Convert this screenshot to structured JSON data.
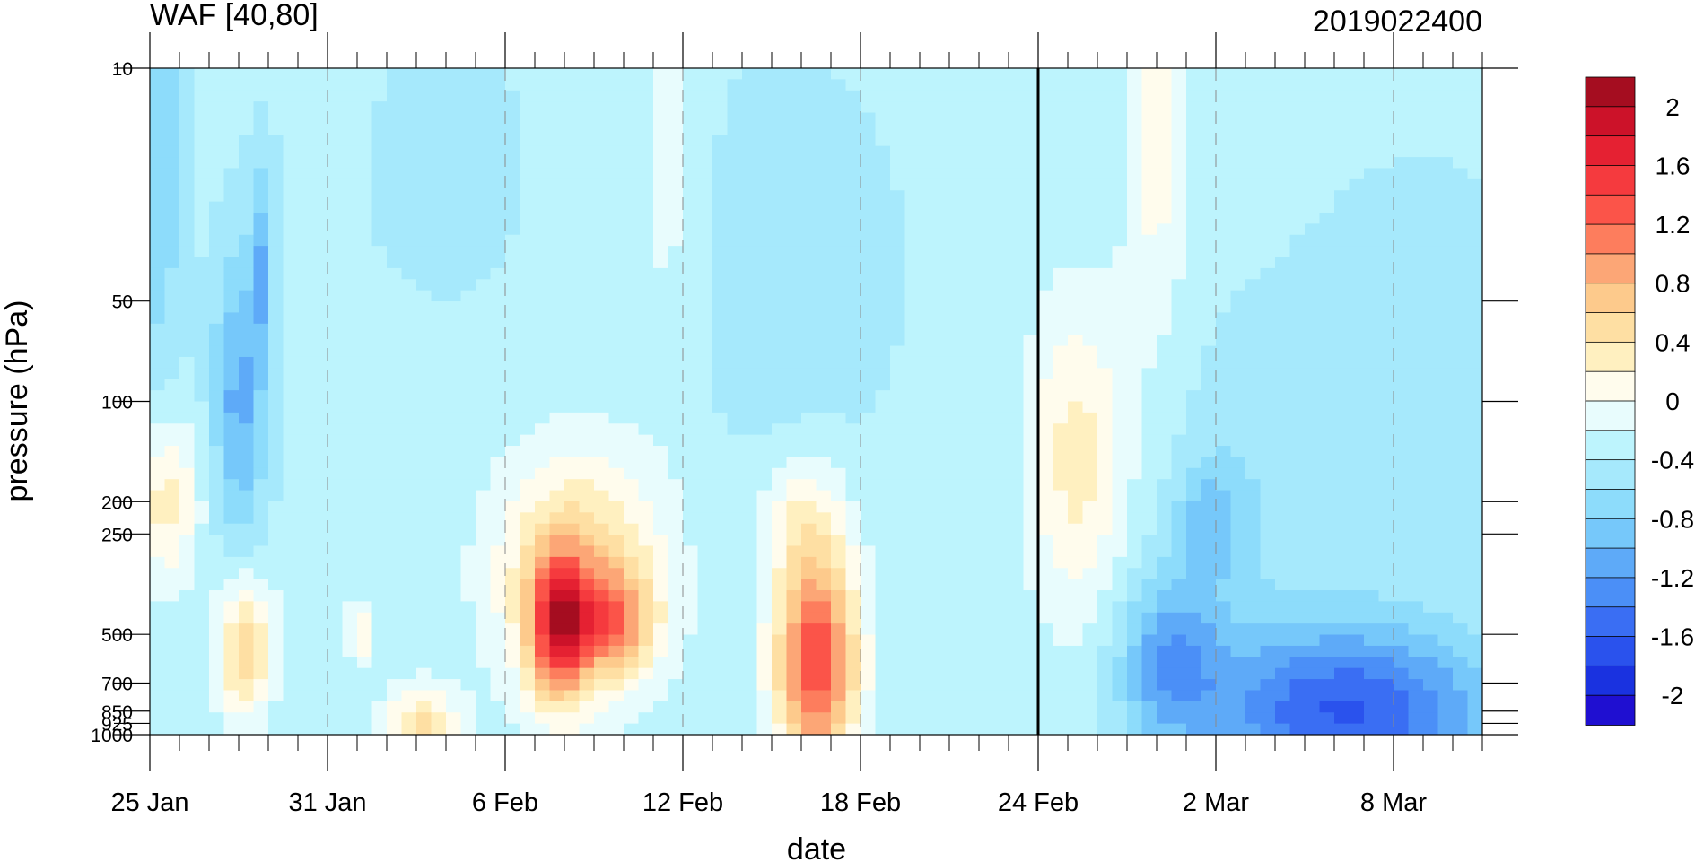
{
  "chart_data": {
    "type": "heatmap",
    "title": "WAF [40,80]",
    "run_label": "2019022400",
    "xlabel": "date",
    "ylabel": "pressure (hPa)",
    "x_tick_labels": [
      "25 Jan",
      "31 Jan",
      "6 Feb",
      "12 Feb",
      "18 Feb",
      "24 Feb",
      "2 Mar",
      "8 Mar"
    ],
    "x_tick_days": [
      0,
      6,
      12,
      18,
      24,
      30,
      36,
      42
    ],
    "x_range_days": [
      0,
      45
    ],
    "y_tick_labels": [
      "10",
      "50",
      "100",
      "200",
      "250",
      "500",
      "700",
      "850",
      "925",
      "1000"
    ],
    "y_ticks": [
      10,
      50,
      100,
      200,
      250,
      500,
      700,
      850,
      925,
      1000
    ],
    "y_range": [
      10,
      1000
    ],
    "y_scale": "log",
    "y_inverted": true,
    "highlight_day": 30,
    "colorbar": {
      "tick_labels": [
        "2",
        "1.6",
        "1.2",
        "0.8",
        "0.4",
        "0",
        "-0.4",
        "-0.8",
        "-1.2",
        "-1.6",
        "-2"
      ],
      "tick_values": [
        2,
        1.6,
        1.2,
        0.8,
        0.4,
        0,
        -0.4,
        -0.8,
        -1.2,
        -1.6,
        -2
      ],
      "levels": [
        -2.2,
        -2,
        -1.8,
        -1.6,
        -1.4,
        -1.2,
        -1,
        -0.8,
        -0.6,
        -0.4,
        -0.2,
        0,
        0.2,
        0.4,
        0.6,
        0.8,
        1,
        1.2,
        1.4,
        1.6,
        1.8,
        2,
        2.2
      ],
      "colors": [
        "#1f0fd1",
        "#1a32e0",
        "#2a52ed",
        "#3a6ef3",
        "#4b8ff7",
        "#5eaaf8",
        "#76c8fa",
        "#8ddcfb",
        "#a6e9fc",
        "#bdf4fd",
        "#e8fcfd",
        "#fffced",
        "#fff0c0",
        "#fedfa3",
        "#fdca8c",
        "#fca676",
        "#fd7d5d",
        "#fb5449",
        "#f53a3e",
        "#e52132",
        "#cc1229",
        "#a50d20"
      ]
    },
    "features": [
      {
        "day": 22.5,
        "p": 600,
        "value": 1.95,
        "sx": 1.0,
        "sy": 0.55
      },
      {
        "day": 13.8,
        "p": 480,
        "value": 1.7,
        "sx": 0.7,
        "sy": 0.35
      },
      {
        "day": 15.6,
        "p": 460,
        "value": 0.9,
        "sx": 1.0,
        "sy": 0.25
      },
      {
        "day": 14.5,
        "p": 330,
        "value": 0.9,
        "sx": 2.0,
        "sy": 0.6
      },
      {
        "day": 31.3,
        "p": 150,
        "value": 0.5,
        "sx": 1.2,
        "sy": 0.8
      },
      {
        "day": 3.2,
        "p": 550,
        "value": 0.85,
        "sx": 0.7,
        "sy": 0.35
      },
      {
        "day": 0.5,
        "p": 200,
        "value": 0.55,
        "sx": 0.8,
        "sy": 0.4
      },
      {
        "day": 9.2,
        "p": 950,
        "value": 0.7,
        "sx": 0.9,
        "sy": 0.2
      },
      {
        "day": 7.1,
        "p": 500,
        "value": 0.4,
        "sx": 0.35,
        "sy": 0.15
      },
      {
        "day": 34.0,
        "p": 13,
        "value": 0.3,
        "sx": 0.8,
        "sy": 1.1
      },
      {
        "day": 22.0,
        "p": 220,
        "value": 0.2,
        "sx": 1.0,
        "sy": 0.3
      },
      {
        "day": 3.0,
        "p": 100,
        "value": -1.3,
        "sx": 0.6,
        "sy": 0.7
      },
      {
        "day": 3.8,
        "p": 40,
        "value": -1.1,
        "sx": 0.3,
        "sy": 0.5
      },
      {
        "day": 40.5,
        "p": 850,
        "value": -2.0,
        "sx": 3.5,
        "sy": 0.4
      },
      {
        "day": 34.5,
        "p": 580,
        "value": -1.3,
        "sx": 1.2,
        "sy": 0.4
      },
      {
        "day": 35.8,
        "p": 230,
        "value": -1.0,
        "sx": 0.8,
        "sy": 0.3
      },
      {
        "day": 0.3,
        "p": 18,
        "value": -0.9,
        "sx": 0.6,
        "sy": 1.2
      },
      {
        "day": 21.5,
        "p": 40,
        "value": -0.6,
        "sx": 2.5,
        "sy": 0.9
      },
      {
        "day": 43.0,
        "p": 80,
        "value": -0.6,
        "sx": 2.5,
        "sy": 0.9
      },
      {
        "day": 38.0,
        "p": 200,
        "value": -0.6,
        "sx": 2.5,
        "sy": 0.9
      },
      {
        "day": 10.0,
        "p": 20,
        "value": -0.45,
        "sx": 3.0,
        "sy": 1.0
      },
      {
        "day": 17.5,
        "p": 20,
        "value": 0.0,
        "sx": 0.8,
        "sy": 1.0
      },
      {
        "day": 39.5,
        "p": 240,
        "value": -0.2,
        "sx": 1.0,
        "sy": 0.2
      }
    ]
  }
}
